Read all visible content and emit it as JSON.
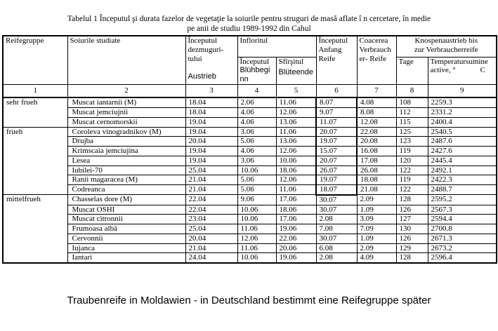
{
  "title": {
    "line1": "Tabelul 1 Începutul şi durata fazelor de vegetaţie la soiurile pentru struguri de masă aflate î n cercetare, în medie",
    "line2": "pe anii de studiu 1989-1992 din Cahul"
  },
  "table": {
    "header": {
      "reifegruppe": "Reifegruppe",
      "soiurile": "Soiurile studiate",
      "col3_ro": "Începutul dezmuguri-tului",
      "col3_de": "Austrieb",
      "infloritul": "Infloritul",
      "col4_ro": "Începutul",
      "col4_de": "Blühbeginn",
      "col5_ro": "Sfîrşitul",
      "col5_de": "Blüteende",
      "col6": "Începutul Anfang Reife",
      "col7": "Coacerea Verbraucher- Reife",
      "knospen_line1": "Knospenaustrieb bis",
      "knospen_line2": "zur Verbraucherreife",
      "col8": "Tage",
      "col9_line1": "Temperatursumine",
      "col9_line2": "active, °",
      "col9_line2c": "C",
      "numbers": [
        "1",
        "2",
        "3",
        "4",
        "5",
        "6",
        "7",
        "8",
        "9"
      ]
    },
    "groups": [
      {
        "name": "sehr frueh",
        "rows": [
          {
            "name": "Muscat iantarnii (M)",
            "values": [
              "18.04",
              "2.06",
              "11.06",
              "8.07",
              "4.08",
              "108",
              "2259.3"
            ]
          },
          {
            "name": "Muscat jemciujnii",
            "values": [
              "18.04",
              "4.06",
              "12.06",
              "9.07",
              "8.08",
              "112",
              "2331.2"
            ]
          },
          {
            "name": "Muscat cernomorskii",
            "values": [
              "19.04",
              "4.06",
              "13.06",
              "11.07",
              "12.08",
              "115",
              "2400.4"
            ]
          }
        ]
      },
      {
        "name": "frueh",
        "rows": [
          {
            "name": "Coroleva vinogradnikov (M)",
            "values": [
              "19.04",
              "3.06",
              "11.06",
              "20.07",
              "22.08",
              "125",
              "2540.5"
            ]
          },
          {
            "name": "Drujba",
            "values": [
              "20.04",
              "5.06",
              "13.06",
              "19.07",
              "20.08",
              "123",
              "2487.6"
            ]
          },
          {
            "name": "Krimscaia jemciujina",
            "values": [
              "19.04",
              "4.06",
              "12.06",
              "15.07",
              "16.08",
              "119",
              "2427.6"
            ]
          },
          {
            "name": "Lesea",
            "values": [
              "19.04",
              "3.06",
              "10.06",
              "20.07",
              "17.08",
              "120",
              "2445.4"
            ]
          },
          {
            "name": "Iubilei-70",
            "values": [
              "25.04",
              "10.06",
              "18.06",
              "26.07",
              "26.08",
              "122",
              "2492.1"
            ]
          },
          {
            "name": "Ranii magaracea (M)",
            "values": [
              "21.04",
              "5.06",
              "12.06",
              "19.07",
              "18.08",
              "119",
              "2422.3"
            ]
          },
          {
            "name": "Codreanca",
            "values": [
              "21.04",
              "5.06",
              "11.06",
              "18.07",
              "21.08",
              "122",
              "2488.7"
            ]
          }
        ]
      },
      {
        "name": "mittelfrueh",
        "rows": [
          {
            "name": "Chasselas dore (M)",
            "values": [
              "22.04",
              "9.06",
              "17.06",
              "30.07",
              "2.09",
              "128",
              "2595.2"
            ]
          },
          {
            "name": "Muscat OSHI",
            "values": [
              "22.04",
              "10.06",
              "18.06",
              "30.07",
              "1.09",
              "126",
              "2567.3"
            ]
          },
          {
            "name": "Muscat citronnii",
            "values": [
              "23.04",
              "10.06",
              "17.06",
              "2.08",
              "3.09",
              "127",
              "2594.4"
            ]
          },
          {
            "name": "Frumoasa albă",
            "values": [
              "25.04",
              "11.06",
              "19.06",
              "7.08",
              "7.09",
              "130",
              "2700.8"
            ]
          },
          {
            "name": "Cervonnii",
            "values": [
              "20.04",
              "12.06",
              "22.06",
              "30.07",
              "1.09",
              "126",
              "2671.3"
            ]
          },
          {
            "name": "Iujanca",
            "values": [
              "21.04",
              "11.06",
              "20.06",
              "6.08",
              "2.09",
              "129",
              "2673.2"
            ]
          },
          {
            "name": "Iantari",
            "values": [
              "24.04",
              "10.06",
              "19.06",
              "2.08",
              "4.09",
              "128",
              "2596.4"
            ]
          }
        ]
      }
    ]
  },
  "footer": "Traubenreife in Moldawien - in Deutschland bestimmt eine Reifegruppe später"
}
